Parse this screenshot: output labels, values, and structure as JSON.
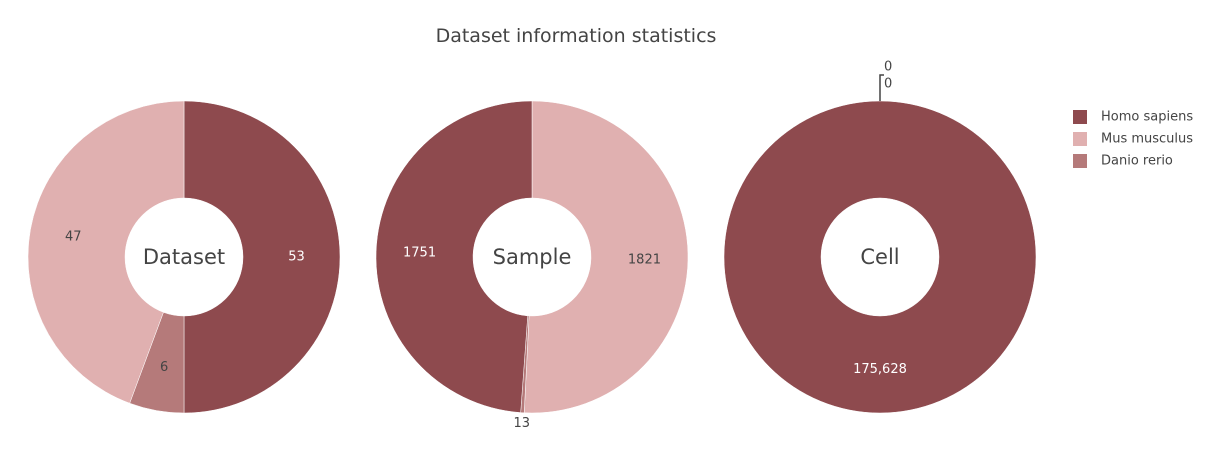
{
  "chart_data": {
    "type": "pie",
    "title": "Dataset information statistics",
    "legend_placement": "right",
    "legend": [
      {
        "name": "Homo sapiens",
        "color": "#8e4a4e"
      },
      {
        "name": "Mus musculus",
        "color": "#e0b0b0"
      },
      {
        "name": "Danio rerio",
        "color": "#b57a7a"
      }
    ],
    "charts": [
      {
        "center_label": "Dataset",
        "slices": [
          {
            "name": "Homo sapiens",
            "value": 53,
            "label": "53"
          },
          {
            "name": "Danio rerio",
            "value": 6,
            "label": "6"
          },
          {
            "name": "Mus musculus",
            "value": 47,
            "label": "47"
          }
        ]
      },
      {
        "center_label": "Sample",
        "slices": [
          {
            "name": "Mus musculus",
            "value": 1821,
            "label": "1821"
          },
          {
            "name": "Danio rerio",
            "value": 13,
            "label": "13"
          },
          {
            "name": "Homo sapiens",
            "value": 1751,
            "label": "1751"
          }
        ]
      },
      {
        "center_label": "Cell",
        "slices": [
          {
            "name": "Homo sapiens",
            "value": 175628,
            "label": "175,628"
          },
          {
            "name": "Mus musculus",
            "value": 0,
            "label": "0"
          },
          {
            "name": "Danio rerio",
            "value": 0,
            "label": "0"
          }
        ]
      }
    ]
  }
}
